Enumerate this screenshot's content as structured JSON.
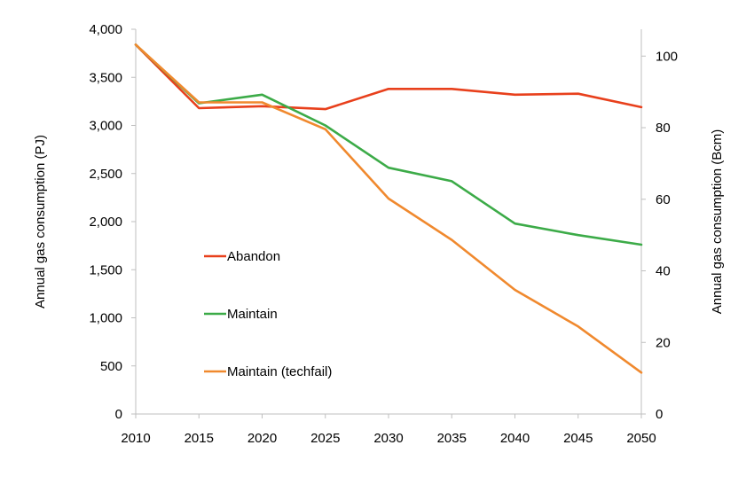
{
  "chart_data": {
    "type": "line",
    "title": "",
    "xlabel": "",
    "ylabel": "Annual gas consumption (PJ)",
    "y2label": "Annual gas consumption (Bcm)",
    "x": [
      2010,
      2015,
      2020,
      2025,
      2030,
      2035,
      2040,
      2045,
      2050
    ],
    "xlim": [
      2010,
      2050
    ],
    "ylim": [
      0,
      4000
    ],
    "y2lim": [
      0,
      107.5
    ],
    "yticks": [
      0,
      500,
      1000,
      1500,
      2000,
      2500,
      3000,
      3500,
      4000
    ],
    "ytick_labels": [
      "0",
      "500",
      "1,000",
      "1,500",
      "2,000",
      "2,500",
      "3,000",
      "3,500",
      "4,000"
    ],
    "y2ticks": [
      0,
      20,
      40,
      60,
      80,
      100
    ],
    "y2tick_labels": [
      "0",
      "20",
      "40",
      "60",
      "80",
      "100"
    ],
    "xtick_labels": [
      "2010",
      "2015",
      "2020",
      "2025",
      "2030",
      "2035",
      "2040",
      "2045",
      "2050"
    ],
    "grid": false,
    "legend_position": "inside-left",
    "series": [
      {
        "name": "Abandon",
        "color": "#e8401c",
        "values": [
          3840,
          3180,
          3200,
          3170,
          3380,
          3380,
          3320,
          3330,
          3190
        ]
      },
      {
        "name": "Maintain",
        "color": "#3cab48",
        "values": [
          3840,
          3230,
          3320,
          3000,
          2560,
          2420,
          1980,
          1860,
          1760
        ]
      },
      {
        "name": "Maintain (techfail)",
        "color": "#f0892e",
        "values": [
          3840,
          3240,
          3240,
          2960,
          2240,
          1810,
          1290,
          910,
          430
        ]
      }
    ]
  }
}
